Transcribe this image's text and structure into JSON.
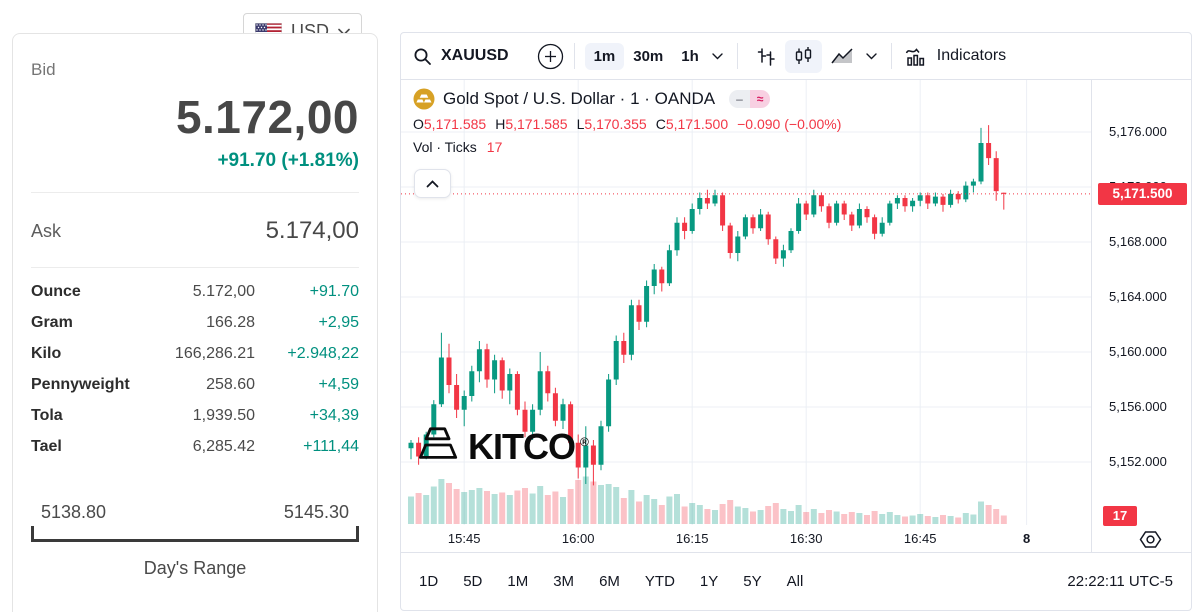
{
  "currency": {
    "code": "USD"
  },
  "quote": {
    "bid_label": "Bid",
    "bid": "5.172,00",
    "change": "+91.70 (+1.81%)",
    "ask_label": "Ask",
    "ask": "5.174,00",
    "units": [
      {
        "label": "Ounce",
        "value": "5.172,00",
        "change": "+91.70"
      },
      {
        "label": "Gram",
        "value": "166.28",
        "change": "+2,95"
      },
      {
        "label": "Kilo",
        "value": "166,286.21",
        "change": "+2.948,22"
      },
      {
        "label": "Pennyweight",
        "value": "258.60",
        "change": "+4,59"
      },
      {
        "label": "Tola",
        "value": "1,939.50",
        "change": "+34,39"
      },
      {
        "label": "Tael",
        "value": "6,285.42",
        "change": "+111,44"
      }
    ],
    "range": {
      "low": "5138.80",
      "high": "5145.30",
      "label": "Day's Range"
    }
  },
  "toolbar": {
    "symbol": "XAUUSD",
    "intervals": [
      {
        "label": "1m",
        "active": true
      },
      {
        "label": "30m",
        "active": false
      },
      {
        "label": "1h",
        "active": false
      }
    ],
    "indicators_label": "Indicators"
  },
  "legend": {
    "title": "Gold Spot / U.S. Dollar · 1 · OANDA",
    "pills": {
      "minus": "–",
      "approx": "≈"
    },
    "ohlc": [
      {
        "k": "O",
        "v": "5,171.585"
      },
      {
        "k": "H",
        "v": "5,171.585"
      },
      {
        "k": "L",
        "v": "5,170.355"
      },
      {
        "k": "C",
        "v": "5,171.500"
      }
    ],
    "change": "−0.090 (−0.00%)",
    "vol_label": "Vol · Ticks",
    "vol_value": "17"
  },
  "watermark": {
    "text": "KITCO",
    "reg": "®"
  },
  "axis": {
    "last_price_label": "5,171.500",
    "vol_badge": "17",
    "price_ticks": [
      {
        "value": 5176,
        "label": "5,176.000"
      },
      {
        "value": 5172,
        "label": "5,172.000"
      },
      {
        "value": 5168,
        "label": "5,168.000"
      },
      {
        "value": 5164,
        "label": "5,164.000"
      },
      {
        "value": 5160,
        "label": "5,160.000"
      },
      {
        "value": 5156,
        "label": "5,156.000"
      },
      {
        "value": 5152,
        "label": "5,152.000"
      }
    ],
    "time_ticks": [
      {
        "i": 7,
        "label": "15:45",
        "bold": false
      },
      {
        "i": 22,
        "label": "16:00",
        "bold": false
      },
      {
        "i": 37,
        "label": "16:15",
        "bold": false
      },
      {
        "i": 52,
        "label": "16:30",
        "bold": false
      },
      {
        "i": 67,
        "label": "16:45",
        "bold": false
      },
      {
        "i": 81,
        "label": "8",
        "bold": true
      }
    ]
  },
  "bottom_bar": {
    "ranges": [
      "1D",
      "5D",
      "1M",
      "3M",
      "6M",
      "YTD",
      "1Y",
      "5Y",
      "All"
    ],
    "clock": "22:22:11 UTC-5"
  },
  "chart_data": {
    "type": "candlestick",
    "symbol": "XAUUSD",
    "exchange": "OANDA",
    "interval": "1",
    "last_price": 5171.5,
    "ohlc_current": {
      "open": 5171.585,
      "high": 5171.585,
      "low": 5170.355,
      "close": 5171.5,
      "change": -0.09,
      "change_pct": 0.0,
      "volume_ticks": 17
    },
    "ylim": [
      5150,
      5177.5
    ],
    "colors": {
      "up": "#089981",
      "down": "#f23645",
      "vol_up": "rgba(8,153,129,0.30)",
      "vol_down": "rgba(242,54,69,0.30)",
      "grid": "#eceff5",
      "last_line": "#f23645"
    },
    "candles_format": [
      "open",
      "high",
      "low",
      "close",
      "volume"
    ],
    "candles": [
      [
        5153.0,
        5153.6,
        5152.2,
        5153.4,
        55
      ],
      [
        5153.4,
        5153.8,
        5151.8,
        5152.4,
        62
      ],
      [
        5152.4,
        5154.2,
        5152.2,
        5154.0,
        58
      ],
      [
        5154.0,
        5156.5,
        5153.8,
        5156.2,
        75
      ],
      [
        5156.2,
        5161.4,
        5156.0,
        5159.6,
        90
      ],
      [
        5159.6,
        5160.6,
        5157.0,
        5157.6,
        82
      ],
      [
        5157.6,
        5158.4,
        5155.2,
        5155.8,
        70
      ],
      [
        5155.8,
        5157.2,
        5154.6,
        5156.8,
        64
      ],
      [
        5156.8,
        5159.0,
        5156.4,
        5158.6,
        68
      ],
      [
        5158.6,
        5160.8,
        5157.8,
        5160.2,
        72
      ],
      [
        5160.2,
        5160.6,
        5157.4,
        5158.0,
        66
      ],
      [
        5158.0,
        5159.8,
        5157.0,
        5159.4,
        60
      ],
      [
        5159.4,
        5159.6,
        5156.6,
        5157.2,
        63
      ],
      [
        5157.2,
        5158.8,
        5156.2,
        5158.4,
        58
      ],
      [
        5158.4,
        5158.6,
        5155.4,
        5155.8,
        67
      ],
      [
        5155.8,
        5156.4,
        5153.8,
        5154.2,
        72
      ],
      [
        5154.2,
        5156.2,
        5153.6,
        5155.8,
        61
      ],
      [
        5155.8,
        5160.0,
        5155.4,
        5158.6,
        76
      ],
      [
        5158.6,
        5159.0,
        5156.4,
        5157.0,
        58
      ],
      [
        5157.0,
        5157.4,
        5154.6,
        5155.0,
        65
      ],
      [
        5155.0,
        5156.6,
        5154.4,
        5156.2,
        54
      ],
      [
        5156.2,
        5156.4,
        5153.0,
        5153.4,
        70
      ],
      [
        5153.4,
        5154.0,
        5150.8,
        5151.6,
        88
      ],
      [
        5151.6,
        5154.6,
        5150.4,
        5153.2,
        95
      ],
      [
        5153.2,
        5153.6,
        5150.3,
        5151.8,
        85
      ],
      [
        5151.8,
        5155.0,
        5151.4,
        5154.6,
        78
      ],
      [
        5154.6,
        5158.4,
        5154.2,
        5158.0,
        80
      ],
      [
        5158.0,
        5161.2,
        5157.6,
        5160.8,
        74
      ],
      [
        5160.8,
        5161.4,
        5159.2,
        5159.8,
        52
      ],
      [
        5159.8,
        5163.8,
        5159.4,
        5163.4,
        68
      ],
      [
        5163.4,
        5163.8,
        5161.6,
        5162.2,
        45
      ],
      [
        5162.2,
        5165.2,
        5161.8,
        5164.8,
        58
      ],
      [
        5164.8,
        5166.4,
        5164.2,
        5166.0,
        50
      ],
      [
        5166.0,
        5166.2,
        5164.4,
        5165.0,
        38
      ],
      [
        5165.0,
        5167.8,
        5164.8,
        5167.4,
        55
      ],
      [
        5167.4,
        5169.8,
        5167.0,
        5169.4,
        60
      ],
      [
        5169.4,
        5169.8,
        5168.2,
        5168.8,
        35
      ],
      [
        5168.8,
        5170.8,
        5168.6,
        5170.4,
        42
      ],
      [
        5170.4,
        5171.6,
        5170.0,
        5171.2,
        38
      ],
      [
        5171.2,
        5171.8,
        5170.4,
        5170.8,
        30
      ],
      [
        5170.8,
        5171.8,
        5170.6,
        5171.4,
        28
      ],
      [
        5171.4,
        5171.6,
        5168.8,
        5169.2,
        40
      ],
      [
        5169.2,
        5169.4,
        5166.8,
        5167.2,
        48
      ],
      [
        5167.2,
        5168.8,
        5166.6,
        5168.4,
        35
      ],
      [
        5168.4,
        5170.0,
        5168.2,
        5169.8,
        32
      ],
      [
        5169.8,
        5170.0,
        5168.6,
        5169.0,
        25
      ],
      [
        5169.0,
        5170.4,
        5168.8,
        5170.0,
        28
      ],
      [
        5170.0,
        5170.2,
        5167.8,
        5168.2,
        36
      ],
      [
        5168.2,
        5168.4,
        5166.4,
        5166.8,
        42
      ],
      [
        5166.8,
        5167.8,
        5166.2,
        5167.4,
        30
      ],
      [
        5167.4,
        5169.0,
        5167.2,
        5168.8,
        26
      ],
      [
        5168.8,
        5171.2,
        5168.6,
        5170.8,
        38
      ],
      [
        5170.8,
        5171.0,
        5169.6,
        5170.0,
        24
      ],
      [
        5170.0,
        5171.8,
        5169.8,
        5171.4,
        30
      ],
      [
        5171.4,
        5171.6,
        5170.2,
        5170.6,
        22
      ],
      [
        5170.6,
        5170.8,
        5169.0,
        5169.4,
        28
      ],
      [
        5169.4,
        5171.0,
        5169.2,
        5170.8,
        25
      ],
      [
        5170.8,
        5171.0,
        5169.6,
        5170.0,
        20
      ],
      [
        5170.0,
        5170.2,
        5168.8,
        5169.2,
        24
      ],
      [
        5169.2,
        5170.8,
        5169.0,
        5170.4,
        22
      ],
      [
        5170.4,
        5170.6,
        5169.4,
        5169.8,
        18
      ],
      [
        5169.8,
        5170.0,
        5168.2,
        5168.6,
        26
      ],
      [
        5168.6,
        5169.8,
        5168.4,
        5169.4,
        20
      ],
      [
        5169.4,
        5171.0,
        5169.2,
        5170.8,
        24
      ],
      [
        5170.8,
        5171.4,
        5170.4,
        5171.2,
        18
      ],
      [
        5171.2,
        5171.4,
        5170.2,
        5170.6,
        15
      ],
      [
        5170.6,
        5171.2,
        5170.2,
        5171.0,
        17
      ],
      [
        5171.0,
        5171.6,
        5170.6,
        5171.4,
        20
      ],
      [
        5171.4,
        5171.6,
        5170.4,
        5170.8,
        16
      ],
      [
        5170.8,
        5171.6,
        5170.6,
        5171.3,
        14
      ],
      [
        5171.3,
        5171.5,
        5170.2,
        5170.7,
        18
      ],
      [
        5170.7,
        5171.8,
        5170.5,
        5171.5,
        16
      ],
      [
        5171.5,
        5171.7,
        5170.8,
        5171.1,
        13
      ],
      [
        5171.1,
        5172.4,
        5170.9,
        5172.1,
        22
      ],
      [
        5172.1,
        5172.6,
        5171.6,
        5172.4,
        19
      ],
      [
        5172.4,
        5176.3,
        5172.2,
        5175.2,
        45
      ],
      [
        5175.2,
        5176.5,
        5173.6,
        5174.1,
        38
      ],
      [
        5174.1,
        5174.6,
        5171.0,
        5171.7,
        30
      ],
      [
        5171.585,
        5171.585,
        5170.355,
        5171.5,
        17
      ]
    ]
  }
}
